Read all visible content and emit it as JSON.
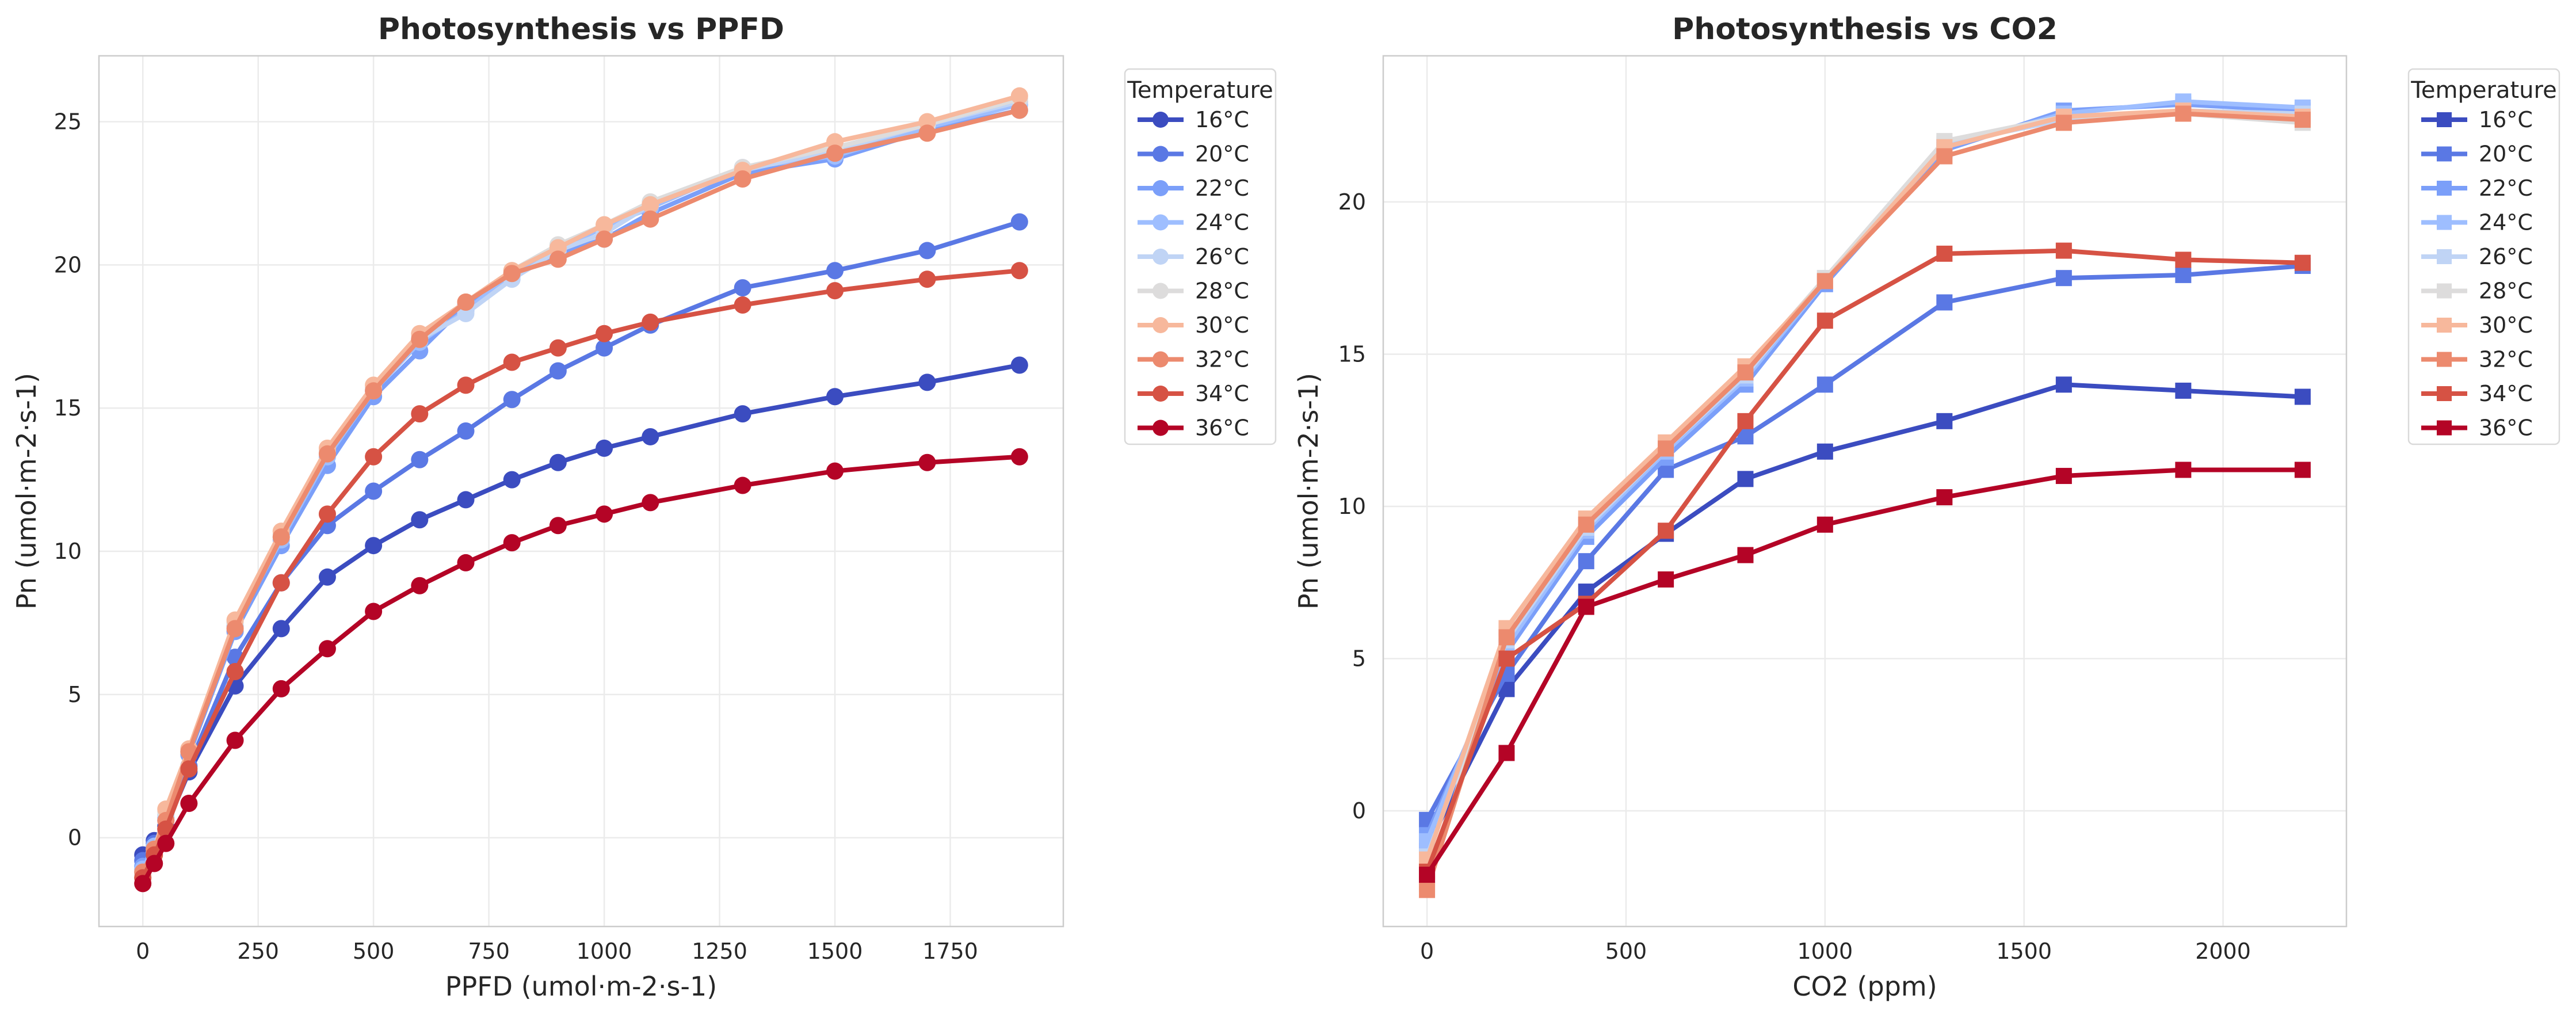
{
  "chart_data": [
    {
      "type": "line",
      "title": "Photosynthesis vs PPFD",
      "xlabel": "PPFD (umol·m-2·s-1)",
      "ylabel": "Pn (umol·m-2·s-1)",
      "xlim": [
        -95,
        1995
      ],
      "ylim": [
        -3.1,
        27.3
      ],
      "xticks": [
        0,
        250,
        500,
        750,
        1000,
        1250,
        1500,
        1750
      ],
      "yticks": [
        0,
        5,
        10,
        15,
        20,
        25
      ],
      "marker": "circle",
      "grid": true,
      "legend": {
        "title": "Temperature",
        "placement": "outside-right"
      },
      "x": [
        0,
        25,
        50,
        100,
        200,
        300,
        400,
        500,
        600,
        700,
        800,
        900,
        1000,
        1100,
        1300,
        1500,
        1700,
        1900
      ],
      "series": [
        {
          "name": "16°C",
          "color": "#3b4cc0",
          "values": [
            -0.6,
            -0.1,
            0.4,
            2.3,
            5.3,
            7.3,
            9.1,
            10.2,
            11.1,
            11.8,
            12.5,
            13.1,
            13.6,
            14.0,
            14.8,
            15.4,
            15.9,
            16.5
          ]
        },
        {
          "name": "20°C",
          "color": "#5a78e4",
          "values": [
            -0.8,
            -0.2,
            0.3,
            2.5,
            6.3,
            8.9,
            10.9,
            12.1,
            13.2,
            14.2,
            15.3,
            16.3,
            17.1,
            17.9,
            19.2,
            19.8,
            20.5,
            21.5
          ]
        },
        {
          "name": "22°C",
          "color": "#7b9ff9",
          "values": [
            -1.0,
            -0.3,
            0.6,
            2.9,
            7.2,
            10.2,
            13.0,
            15.4,
            17.0,
            18.6,
            19.6,
            20.4,
            20.9,
            21.8,
            23.2,
            23.7,
            24.7,
            25.4
          ]
        },
        {
          "name": "24°C",
          "color": "#9ebeff",
          "values": [
            -1.1,
            -0.3,
            0.7,
            3.0,
            7.4,
            10.4,
            13.3,
            15.6,
            17.3,
            18.4,
            19.7,
            20.6,
            21.3,
            22.0,
            23.4,
            23.8,
            24.8,
            25.6
          ]
        },
        {
          "name": "26°C",
          "color": "#c0d4f5",
          "values": [
            -1.2,
            -0.4,
            0.8,
            3.0,
            7.5,
            10.5,
            13.4,
            15.7,
            17.4,
            18.3,
            19.5,
            20.5,
            21.1,
            22.1,
            23.3,
            24.0,
            24.9,
            25.7
          ]
        },
        {
          "name": "28°C",
          "color": "#dddcdc",
          "values": [
            -1.3,
            -0.4,
            0.9,
            3.1,
            7.5,
            10.6,
            13.5,
            15.7,
            17.5,
            18.7,
            19.8,
            20.7,
            21.4,
            22.2,
            23.4,
            24.1,
            24.9,
            25.8
          ]
        },
        {
          "name": "30°C",
          "color": "#f7b89c",
          "values": [
            -1.4,
            -0.5,
            1.0,
            3.1,
            7.6,
            10.7,
            13.6,
            15.8,
            17.6,
            18.7,
            19.8,
            20.6,
            21.4,
            22.1,
            23.3,
            24.3,
            25.0,
            25.9
          ]
        },
        {
          "name": "32°C",
          "color": "#ec8a6e",
          "values": [
            -1.2,
            -0.4,
            0.6,
            3.0,
            7.3,
            10.5,
            13.4,
            15.6,
            17.4,
            18.7,
            19.7,
            20.2,
            20.9,
            21.6,
            23.0,
            23.9,
            24.6,
            25.4
          ]
        },
        {
          "name": "34°C",
          "color": "#d65244",
          "values": [
            -1.4,
            -0.6,
            0.3,
            2.4,
            5.8,
            8.9,
            11.3,
            13.3,
            14.8,
            15.8,
            16.6,
            17.1,
            17.6,
            18.0,
            18.6,
            19.1,
            19.5,
            19.8
          ]
        },
        {
          "name": "36°C",
          "color": "#b40426",
          "values": [
            -1.6,
            -0.9,
            -0.2,
            1.2,
            3.4,
            5.2,
            6.6,
            7.9,
            8.8,
            9.6,
            10.3,
            10.9,
            11.3,
            11.7,
            12.3,
            12.8,
            13.1,
            13.3
          ]
        }
      ]
    },
    {
      "type": "line",
      "title": "Photosynthesis vs CO2",
      "xlabel": "CO2 (ppm)",
      "ylabel": "Pn (umol·m-2·s-1)",
      "xlim": [
        -110,
        2310
      ],
      "ylim": [
        -3.8,
        24.8
      ],
      "xticks": [
        0,
        500,
        1000,
        1500,
        2000
      ],
      "yticks": [
        0,
        5,
        10,
        15,
        20
      ],
      "marker": "square",
      "grid": true,
      "legend": {
        "title": "Temperature",
        "placement": "outside-right"
      },
      "x": [
        0,
        200,
        400,
        600,
        800,
        1000,
        1300,
        1600,
        1900,
        2200
      ],
      "series": [
        {
          "name": "16°C",
          "color": "#3b4cc0",
          "values": [
            -1.2,
            4.0,
            7.2,
            9.1,
            10.9,
            11.8,
            12.8,
            14.0,
            13.8,
            13.6
          ]
        },
        {
          "name": "20°C",
          "color": "#5a78e4",
          "values": [
            -0.3,
            4.5,
            8.2,
            11.2,
            12.3,
            14.0,
            16.7,
            17.5,
            17.6,
            17.9
          ]
        },
        {
          "name": "22°C",
          "color": "#7b9ff9",
          "values": [
            -0.8,
            5.2,
            9.0,
            11.6,
            14.0,
            17.3,
            21.7,
            23.0,
            23.2,
            23.0
          ]
        },
        {
          "name": "24°C",
          "color": "#9ebeff",
          "values": [
            -1.0,
            5.4,
            9.2,
            11.8,
            14.2,
            17.4,
            21.8,
            22.9,
            23.3,
            23.1
          ]
        },
        {
          "name": "26°C",
          "color": "#c0d4f5",
          "values": [
            -1.5,
            5.6,
            9.3,
            11.9,
            14.3,
            17.5,
            21.9,
            22.7,
            23.0,
            22.9
          ]
        },
        {
          "name": "28°C",
          "color": "#dddcdc",
          "values": [
            -2.4,
            5.8,
            9.5,
            12.0,
            14.5,
            17.5,
            22.0,
            22.8,
            22.9,
            22.6
          ]
        },
        {
          "name": "30°C",
          "color": "#f7b89c",
          "values": [
            -1.6,
            6.0,
            9.6,
            12.1,
            14.6,
            17.4,
            21.8,
            22.8,
            23.0,
            22.8
          ]
        },
        {
          "name": "32°C",
          "color": "#ec8a6e",
          "values": [
            -2.6,
            5.7,
            9.4,
            11.9,
            14.4,
            17.4,
            21.5,
            22.6,
            22.9,
            22.7
          ]
        },
        {
          "name": "34°C",
          "color": "#d65244",
          "values": [
            -2.0,
            5.0,
            6.8,
            9.2,
            12.8,
            16.1,
            18.3,
            18.4,
            18.1,
            18.0
          ]
        },
        {
          "name": "36°C",
          "color": "#b40426",
          "values": [
            -2.1,
            1.9,
            6.7,
            7.6,
            8.4,
            9.4,
            10.3,
            11.0,
            11.2,
            11.2
          ]
        }
      ]
    }
  ]
}
